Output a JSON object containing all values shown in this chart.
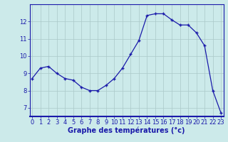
{
  "x": [
    0,
    1,
    2,
    3,
    4,
    5,
    6,
    7,
    8,
    9,
    10,
    11,
    12,
    13,
    14,
    15,
    16,
    17,
    18,
    19,
    20,
    21,
    22,
    23
  ],
  "y": [
    8.7,
    9.3,
    9.4,
    9.0,
    8.7,
    8.6,
    8.2,
    8.0,
    8.0,
    8.3,
    8.7,
    9.3,
    10.1,
    10.9,
    12.35,
    12.45,
    12.45,
    12.1,
    11.8,
    11.8,
    11.35,
    10.6,
    8.0,
    6.7
  ],
  "line_color": "#1a1aaa",
  "marker": "+",
  "markersize": 3.5,
  "linewidth": 0.9,
  "xlabel": "Graphe des températures (°c)",
  "xlabel_fontsize": 7,
  "xlabel_fontweight": "bold",
  "ylim": [
    6.5,
    13.0
  ],
  "xlim": [
    -0.3,
    23.3
  ],
  "yticks": [
    7,
    8,
    9,
    10,
    11,
    12
  ],
  "xticks": [
    0,
    1,
    2,
    3,
    4,
    5,
    6,
    7,
    8,
    9,
    10,
    11,
    12,
    13,
    14,
    15,
    16,
    17,
    18,
    19,
    20,
    21,
    22,
    23
  ],
  "tick_fontsize": 6,
  "bg_color": "#cceaea",
  "grid_color": "#aac8c8",
  "axis_color": "#1a1aaa",
  "label_color": "#1a1aaa",
  "bottom_bar_color": "#1a1aaa"
}
